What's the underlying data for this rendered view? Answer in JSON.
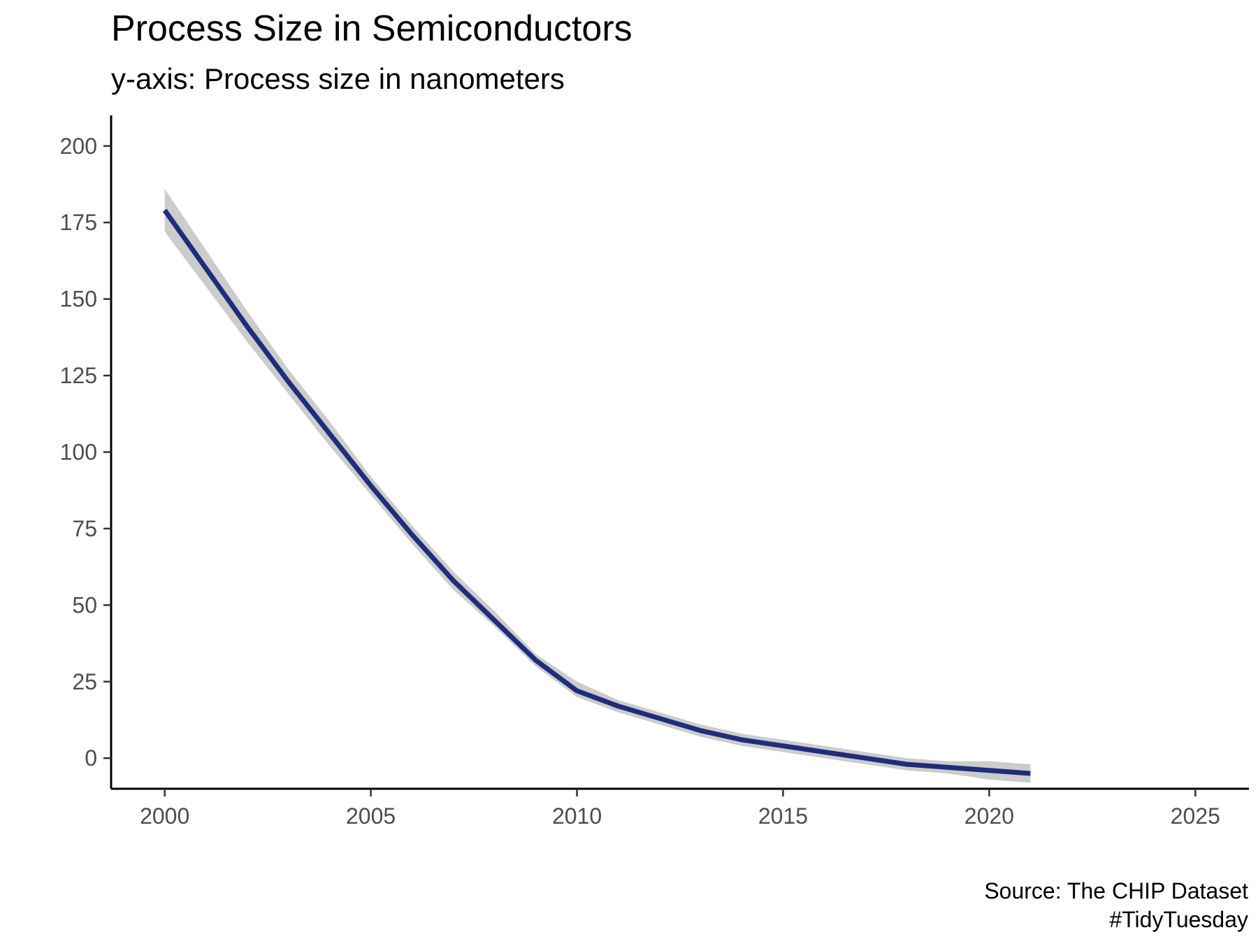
{
  "chart_data": {
    "type": "line",
    "title": "Process Size in Semiconductors",
    "subtitle": "y-axis: Process size in nanometers",
    "xlabel": "",
    "ylabel": "",
    "xlim": [
      1998.7,
      2026.3
    ],
    "ylim": [
      -10,
      210
    ],
    "x_ticks": [
      2000,
      2005,
      2010,
      2015,
      2020,
      2025
    ],
    "y_ticks": [
      0,
      25,
      50,
      75,
      100,
      125,
      150,
      175,
      200
    ],
    "grid": false,
    "legend": "none",
    "series": [
      {
        "color": "#1f2d7a",
        "x": [
          2000,
          2001,
          2002,
          2003,
          2004,
          2005,
          2006,
          2007,
          2008,
          2009,
          2010,
          2011,
          2012,
          2013,
          2014,
          2015,
          2016,
          2017,
          2018,
          2019,
          2020,
          2021
        ],
        "y": [
          179,
          160,
          141,
          123,
          106,
          89,
          73,
          58,
          45,
          32,
          22,
          17,
          13,
          9,
          6,
          4,
          2,
          0,
          -2,
          -3,
          -4,
          -5
        ]
      }
    ],
    "confidence_band": {
      "color": "#cccccc",
      "x": [
        2000,
        2001,
        2002,
        2003,
        2004,
        2005,
        2006,
        2007,
        2008,
        2009,
        2010,
        2011,
        2012,
        2013,
        2014,
        2015,
        2016,
        2017,
        2018,
        2019,
        2020,
        2021
      ],
      "lower": [
        172,
        154,
        136,
        119,
        102,
        86,
        70,
        55,
        43,
        30,
        20,
        15,
        11,
        7,
        4,
        2,
        0,
        -2,
        -4,
        -5,
        -7,
        -8
      ],
      "upper": [
        186,
        166,
        146,
        127,
        110,
        92,
        76,
        61,
        48,
        34,
        25,
        19,
        15,
        11,
        8,
        6,
        4,
        2,
        0,
        -1,
        -1,
        -2
      ]
    },
    "caption": [
      "Source: The CHIP Dataset",
      "#TidyTuesday"
    ]
  },
  "colors": {
    "line": "#1f2d7a",
    "band": "#cccccc",
    "axis": "#000000",
    "tick_text": "#4d4d4d"
  }
}
